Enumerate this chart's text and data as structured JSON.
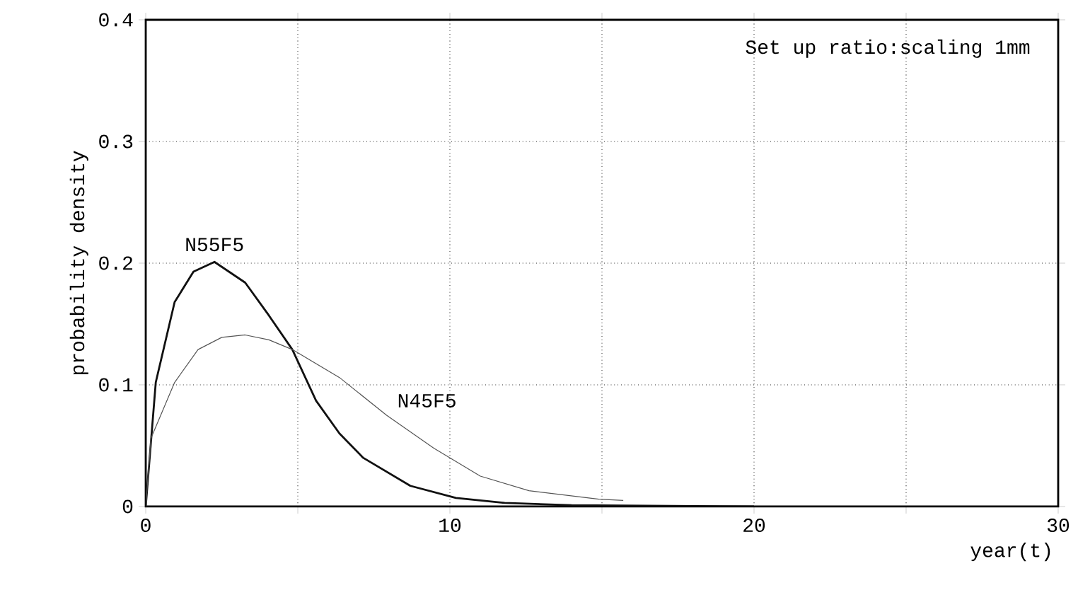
{
  "chart_data": {
    "type": "line",
    "xlabel": "year(t)",
    "ylabel": "probability density",
    "annotations": [
      "Set up ratio:scaling 1mm"
    ],
    "xlim": [
      0,
      30
    ],
    "ylim": [
      0,
      0.4
    ],
    "xticks": [
      0,
      {
        "value": 5,
        "label": null
      },
      10,
      {
        "value": 15,
        "label": null
      },
      20,
      {
        "value": 25,
        "label": null
      },
      30
    ],
    "yticks": [
      0,
      0.1,
      0.2,
      0.3,
      0.4
    ],
    "grid": true,
    "marker": "none",
    "line_style": "solid",
    "series": [
      {
        "name": "N55F5",
        "color": "#111111",
        "x": [
          0,
          0.33,
          0.95,
          1.57,
          2.26,
          3.27,
          4.05,
          4.82,
          5.6,
          6.37,
          7.15,
          8.7,
          10.2,
          11.8,
          14,
          20
        ],
        "values": [
          0,
          0.102,
          0.168,
          0.193,
          0.201,
          0.184,
          0.157,
          0.129,
          0.087,
          0.06,
          0.04,
          0.017,
          0.007,
          0.003,
          0.001,
          0
        ]
      },
      {
        "name": "N45F5",
        "color": "#555555",
        "x": [
          0,
          0.17,
          0.95,
          1.72,
          2.5,
          3.27,
          4.05,
          4.82,
          6.37,
          7.92,
          9.47,
          11,
          12.6,
          14.9,
          15.7
        ],
        "values": [
          0,
          0.056,
          0.102,
          0.129,
          0.139,
          0.141,
          0.137,
          0.129,
          0.106,
          0.075,
          0.048,
          0.025,
          0.013,
          0.006,
          0.005
        ]
      }
    ]
  }
}
